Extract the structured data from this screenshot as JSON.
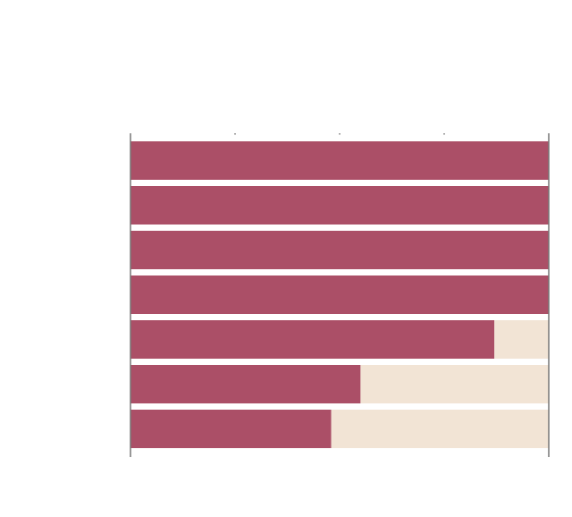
{
  "chart_data": {
    "type": "bar",
    "orientation": "horizontal",
    "stacked": true,
    "categories": [
      "",
      "",
      "",
      "",
      "",
      "",
      ""
    ],
    "series": [
      {
        "values": [
          100,
          100,
          100,
          100,
          87,
          55,
          48
        ]
      },
      {
        "values": [
          0,
          0,
          0,
          0,
          13,
          45,
          52
        ]
      }
    ],
    "xlim": [
      0,
      100
    ],
    "xticks": [
      0,
      25,
      50,
      75,
      100
    ],
    "grid": true,
    "colors": [
      "#ab4f67",
      "#f2e4d5",
      "#777777"
    ]
  }
}
